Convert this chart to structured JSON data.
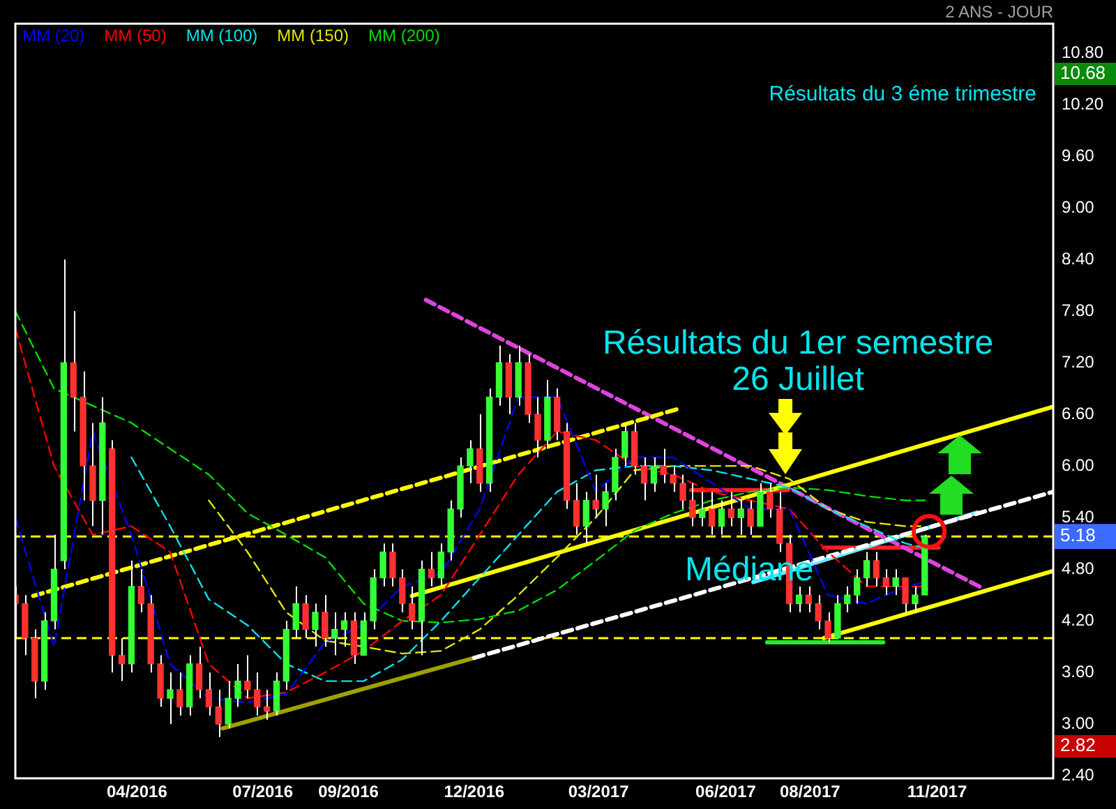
{
  "chart_data": {
    "type": "candlestick",
    "subtitle": "2 ANS - JOUR",
    "legend": "top left",
    "x": [
      "2016-01-04",
      "2016-01-11",
      "2016-01-18",
      "2016-01-25",
      "2016-02-01",
      "2016-02-08",
      "2016-02-15",
      "2016-02-22",
      "2016-02-29",
      "2016-03-07",
      "2016-03-14",
      "2016-03-21",
      "2016-03-28",
      "2016-04-04",
      "2016-04-11",
      "2016-04-18",
      "2016-04-25",
      "2016-05-02",
      "2016-05-09",
      "2016-05-16",
      "2016-05-23",
      "2016-05-30",
      "2016-06-06",
      "2016-06-13",
      "2016-06-20",
      "2016-06-27",
      "2016-07-04",
      "2016-07-11",
      "2016-07-18",
      "2016-07-25",
      "2016-08-01",
      "2016-08-08",
      "2016-08-15",
      "2016-08-22",
      "2016-08-29",
      "2016-09-05",
      "2016-09-12",
      "2016-09-19",
      "2016-09-26",
      "2016-10-03",
      "2016-10-10",
      "2016-10-17",
      "2016-10-24",
      "2016-10-31",
      "2016-11-07",
      "2016-11-14",
      "2016-11-21",
      "2016-11-28",
      "2016-12-05",
      "2016-12-12",
      "2016-12-19",
      "2016-12-26",
      "2017-01-02",
      "2017-01-09",
      "2017-01-16",
      "2017-01-23",
      "2017-01-30",
      "2017-02-06",
      "2017-02-13",
      "2017-02-20",
      "2017-02-27",
      "2017-03-06",
      "2017-03-13",
      "2017-03-20",
      "2017-03-27",
      "2017-04-03",
      "2017-04-10",
      "2017-04-17",
      "2017-04-24",
      "2017-05-01",
      "2017-05-08",
      "2017-05-15",
      "2017-05-22",
      "2017-05-29",
      "2017-06-05",
      "2017-06-12",
      "2017-06-19",
      "2017-06-26",
      "2017-07-03",
      "2017-07-10",
      "2017-07-17",
      "2017-07-24",
      "2017-07-31",
      "2017-08-07",
      "2017-08-14",
      "2017-08-21",
      "2017-08-28",
      "2017-09-04",
      "2017-09-11",
      "2017-09-18",
      "2017-09-25",
      "2017-10-02",
      "2017-10-09",
      "2017-10-16",
      "2017-10-23"
    ],
    "ohlc": [
      [
        4.5,
        4.6,
        4.0,
        4.4
      ],
      [
        4.4,
        4.5,
        3.8,
        4.0
      ],
      [
        4.0,
        4.1,
        3.3,
        3.5
      ],
      [
        3.5,
        4.3,
        3.4,
        4.2
      ],
      [
        4.2,
        5.2,
        4.1,
        4.8
      ],
      [
        4.9,
        8.4,
        4.8,
        7.2
      ],
      [
        7.2,
        7.8,
        6.4,
        6.8
      ],
      [
        6.8,
        7.1,
        5.6,
        6.0
      ],
      [
        6.0,
        6.5,
        5.3,
        5.6
      ],
      [
        5.6,
        6.8,
        5.2,
        6.5
      ],
      [
        6.2,
        6.3,
        3.6,
        3.8
      ],
      [
        3.8,
        4.0,
        3.5,
        3.7
      ],
      [
        3.7,
        4.9,
        3.6,
        4.6
      ],
      [
        4.6,
        4.8,
        4.3,
        4.4
      ],
      [
        4.4,
        4.5,
        3.6,
        3.7
      ],
      [
        3.7,
        3.8,
        3.2,
        3.3
      ],
      [
        3.3,
        3.6,
        3.0,
        3.4
      ],
      [
        3.4,
        3.6,
        3.1,
        3.2
      ],
      [
        3.2,
        3.8,
        3.1,
        3.7
      ],
      [
        3.7,
        3.9,
        3.3,
        3.4
      ],
      [
        3.4,
        3.6,
        3.1,
        3.2
      ],
      [
        3.2,
        3.4,
        2.85,
        3.0
      ],
      [
        3.0,
        3.5,
        2.95,
        3.3
      ],
      [
        3.3,
        3.7,
        3.2,
        3.5
      ],
      [
        3.5,
        3.8,
        3.3,
        3.4
      ],
      [
        3.4,
        3.6,
        3.1,
        3.2
      ],
      [
        3.2,
        3.4,
        3.05,
        3.15
      ],
      [
        3.15,
        3.6,
        3.1,
        3.5
      ],
      [
        3.5,
        4.2,
        3.4,
        4.1
      ],
      [
        4.1,
        4.6,
        4.0,
        4.4
      ],
      [
        4.4,
        4.5,
        4.0,
        4.1
      ],
      [
        4.1,
        4.4,
        3.9,
        4.3
      ],
      [
        4.3,
        4.5,
        3.9,
        4.0
      ],
      [
        4.0,
        4.3,
        3.8,
        4.1
      ],
      [
        4.1,
        4.3,
        3.9,
        4.2
      ],
      [
        4.2,
        4.3,
        3.7,
        3.8
      ],
      [
        3.8,
        4.3,
        3.8,
        4.2
      ],
      [
        4.2,
        4.8,
        4.1,
        4.7
      ],
      [
        4.7,
        5.1,
        4.6,
        5.0
      ],
      [
        5.0,
        5.1,
        4.6,
        4.7
      ],
      [
        4.7,
        4.8,
        4.3,
        4.4
      ],
      [
        4.4,
        4.6,
        4.1,
        4.2
      ],
      [
        4.2,
        4.9,
        3.8,
        4.8
      ],
      [
        4.8,
        5.0,
        4.6,
        4.7
      ],
      [
        4.7,
        5.1,
        4.6,
        5.0
      ],
      [
        5.0,
        5.6,
        4.9,
        5.5
      ],
      [
        5.5,
        6.1,
        5.4,
        6.0
      ],
      [
        6.0,
        6.3,
        5.8,
        6.2
      ],
      [
        6.2,
        6.6,
        5.7,
        5.8
      ],
      [
        5.8,
        6.9,
        5.7,
        6.8
      ],
      [
        6.8,
        7.4,
        6.7,
        7.2
      ],
      [
        7.2,
        7.3,
        6.6,
        6.8
      ],
      [
        6.8,
        7.4,
        6.7,
        7.2
      ],
      [
        7.2,
        7.3,
        6.5,
        6.6
      ],
      [
        6.6,
        6.8,
        6.1,
        6.3
      ],
      [
        6.3,
        7.0,
        6.2,
        6.8
      ],
      [
        6.8,
        6.9,
        6.3,
        6.4
      ],
      [
        6.4,
        6.5,
        5.5,
        5.6
      ],
      [
        5.6,
        5.8,
        5.2,
        5.3
      ],
      [
        5.3,
        5.7,
        5.1,
        5.6
      ],
      [
        5.6,
        5.9,
        5.4,
        5.5
      ],
      [
        5.5,
        5.8,
        5.3,
        5.7
      ],
      [
        5.7,
        6.2,
        5.6,
        6.1
      ],
      [
        6.1,
        6.5,
        6.0,
        6.4
      ],
      [
        6.4,
        6.5,
        5.9,
        6.0
      ],
      [
        6.0,
        6.1,
        5.6,
        5.8
      ],
      [
        5.8,
        6.1,
        5.7,
        6.0
      ],
      [
        6.0,
        6.2,
        5.8,
        5.9
      ],
      [
        5.9,
        6.0,
        5.7,
        5.8
      ],
      [
        5.8,
        5.9,
        5.5,
        5.6
      ],
      [
        5.6,
        5.8,
        5.3,
        5.4
      ],
      [
        5.4,
        5.7,
        5.3,
        5.5
      ],
      [
        5.5,
        5.7,
        5.2,
        5.3
      ],
      [
        5.3,
        5.6,
        5.2,
        5.5
      ],
      [
        5.5,
        5.7,
        5.3,
        5.4
      ],
      [
        5.4,
        5.6,
        5.2,
        5.5
      ],
      [
        5.5,
        5.6,
        5.2,
        5.3
      ],
      [
        5.3,
        5.8,
        5.3,
        5.7
      ],
      [
        5.7,
        5.8,
        5.4,
        5.5
      ],
      [
        5.5,
        5.7,
        5.0,
        5.1
      ],
      [
        5.1,
        5.2,
        4.3,
        4.4
      ],
      [
        4.4,
        4.6,
        4.3,
        4.5
      ],
      [
        4.5,
        4.6,
        4.3,
        4.4
      ],
      [
        4.4,
        4.5,
        4.1,
        4.2
      ],
      [
        4.2,
        4.3,
        3.95,
        4.0
      ],
      [
        4.0,
        4.5,
        4.0,
        4.4
      ],
      [
        4.4,
        4.6,
        4.3,
        4.5
      ],
      [
        4.5,
        4.8,
        4.4,
        4.7
      ],
      [
        4.7,
        5.0,
        4.6,
        4.9
      ],
      [
        4.9,
        5.0,
        4.6,
        4.7
      ],
      [
        4.7,
        4.8,
        4.5,
        4.6
      ],
      [
        4.6,
        4.8,
        4.5,
        4.7
      ],
      [
        4.7,
        4.7,
        4.3,
        4.4
      ],
      [
        4.4,
        4.6,
        4.3,
        4.5
      ],
      [
        4.5,
        5.2,
        4.5,
        5.18
      ]
    ],
    "series": [
      {
        "type": "line",
        "name": "MM (20)",
        "color": "#0000ff",
        "line_style": "dashed",
        "x": [
          "2016-01-04",
          "2016-02-01",
          "2016-02-29",
          "2016-03-28",
          "2016-04-25",
          "2016-05-23",
          "2016-06-20",
          "2016-07-18",
          "2016-08-15",
          "2016-09-12",
          "2016-10-10",
          "2016-11-07",
          "2016-12-05",
          "2017-01-02",
          "2017-01-30",
          "2017-02-27",
          "2017-03-27",
          "2017-04-24",
          "2017-05-22",
          "2017-06-19",
          "2017-07-17",
          "2017-08-14",
          "2017-09-11",
          "2017-10-09",
          "2017-10-23"
        ],
        "values": [
          5.4,
          3.9,
          6.4,
          5.2,
          3.7,
          3.3,
          3.25,
          3.35,
          3.95,
          4.15,
          4.6,
          4.75,
          5.5,
          6.8,
          6.8,
          5.7,
          6.1,
          6.1,
          5.8,
          5.5,
          5.5,
          4.5,
          4.4,
          4.6,
          4.65
        ]
      },
      {
        "type": "line",
        "name": "MM (50)",
        "color": "#ff0000",
        "line_style": "dashed",
        "x": [
          "2016-01-04",
          "2016-02-01",
          "2016-02-29",
          "2016-03-28",
          "2016-04-25",
          "2016-05-23",
          "2016-06-20",
          "2016-07-18",
          "2016-08-15",
          "2016-09-12",
          "2016-10-10",
          "2016-11-07",
          "2016-12-05",
          "2017-01-02",
          "2017-01-30",
          "2017-02-27",
          "2017-03-27",
          "2017-04-24",
          "2017-05-22",
          "2017-06-19",
          "2017-07-17",
          "2017-08-14",
          "2017-09-11",
          "2017-10-09",
          "2017-10-23"
        ],
        "values": [
          7.6,
          6.0,
          5.2,
          5.3,
          5.0,
          3.7,
          3.3,
          3.37,
          3.6,
          3.85,
          4.2,
          4.5,
          5.2,
          5.9,
          6.4,
          6.3,
          6.0,
          5.9,
          5.7,
          5.6,
          5.5,
          5.0,
          4.6,
          4.6,
          4.6
        ]
      },
      {
        "type": "line",
        "name": "MM (100)",
        "color": "#00e5ee",
        "line_style": "dashed",
        "x": [
          "2016-03-28",
          "2016-04-25",
          "2016-05-23",
          "2016-06-20",
          "2016-07-18",
          "2016-08-15",
          "2016-09-12",
          "2016-10-10",
          "2016-11-07",
          "2016-12-05",
          "2017-01-02",
          "2017-01-30",
          "2017-02-27",
          "2017-03-27",
          "2017-04-24",
          "2017-05-22",
          "2017-06-19",
          "2017-07-17",
          "2017-08-14",
          "2017-09-11",
          "2017-10-09",
          "2017-10-23"
        ],
        "values": [
          6.1,
          5.3,
          4.45,
          4.15,
          3.7,
          3.5,
          3.5,
          3.75,
          4.2,
          4.7,
          5.2,
          5.7,
          5.95,
          6.0,
          6.0,
          5.95,
          5.85,
          5.75,
          5.5,
          5.3,
          5.1,
          5.05
        ]
      },
      {
        "type": "line",
        "name": "MM (150)",
        "color": "#e5e500",
        "line_style": "dashed",
        "x": [
          "2016-05-23",
          "2016-06-20",
          "2016-07-18",
          "2016-08-15",
          "2016-09-12",
          "2016-10-10",
          "2016-11-07",
          "2016-12-05",
          "2017-01-02",
          "2017-01-30",
          "2017-02-27",
          "2017-03-27",
          "2017-04-24",
          "2017-05-22",
          "2017-06-19",
          "2017-07-17",
          "2017-08-14",
          "2017-09-11",
          "2017-10-09",
          "2017-10-23"
        ],
        "values": [
          5.6,
          5.0,
          4.3,
          3.97,
          3.9,
          3.82,
          3.85,
          4.1,
          4.5,
          4.94,
          5.4,
          5.95,
          6.0,
          6.0,
          6.0,
          5.85,
          5.5,
          5.35,
          5.3,
          5.3
        ]
      },
      {
        "type": "line",
        "name": "MM (200)",
        "color": "#00dd00",
        "line_style": "dashed",
        "x": [
          "2016-01-04",
          "2016-02-01",
          "2016-02-29",
          "2016-03-28",
          "2016-04-25",
          "2016-05-23",
          "2016-06-20",
          "2016-07-18",
          "2016-08-15",
          "2016-09-12",
          "2016-10-10",
          "2016-11-07",
          "2016-12-05",
          "2017-01-02",
          "2017-01-30",
          "2017-02-27",
          "2017-03-27",
          "2017-04-24",
          "2017-05-22",
          "2017-06-19",
          "2017-07-17",
          "2017-08-14",
          "2017-09-11",
          "2017-10-09",
          "2017-10-23"
        ],
        "values": [
          7.8,
          6.9,
          6.7,
          6.5,
          6.2,
          5.9,
          5.45,
          5.2,
          4.94,
          4.4,
          4.2,
          4.18,
          4.22,
          4.32,
          4.56,
          4.9,
          5.25,
          5.45,
          5.6,
          5.7,
          5.75,
          5.72,
          5.65,
          5.6,
          5.6
        ]
      },
      {
        "type": "line",
        "color": "#ffff00",
        "line_style": "solid",
        "x": [
          "2016-10-17",
          "2018-01-24"
        ],
        "values": [
          4.49,
          6.69
        ]
      },
      {
        "type": "line",
        "color": "#ffff00",
        "line_style": "solid",
        "x": [
          "2017-08-11",
          "2018-01-24"
        ],
        "values": [
          4.0,
          4.78
        ]
      },
      {
        "type": "line",
        "color": "#ffff00",
        "line_style": "dashed",
        "x": [
          "2016-01-17",
          "2017-04-29"
        ],
        "values": [
          4.49,
          6.67
        ]
      },
      {
        "type": "line",
        "color": "#ffffff",
        "line_style": "dashed",
        "x": [
          "2016-12-01",
          "2018-01-24"
        ],
        "values": [
          3.77,
          5.7
        ]
      },
      {
        "type": "line",
        "color": "#66e8ff",
        "line_style": "solid",
        "x": [
          "2017-06-21",
          "2017-11-30"
        ],
        "values": [
          4.65,
          5.46
        ]
      },
      {
        "type": "line",
        "color": "#dd44dd",
        "line_style": "dashed",
        "x": [
          "2016-10-27",
          "2017-12-05"
        ],
        "values": [
          7.93,
          4.57
        ]
      },
      {
        "type": "line",
        "color": "#a0a000",
        "line_style": "solid",
        "x": [
          "2016-06-02",
          "2016-12-01"
        ],
        "values": [
          2.95,
          3.77
        ]
      },
      {
        "type": "line",
        "color": "#ff2020",
        "line_style": "solid",
        "x": [
          "2017-05-07",
          "2017-07-16"
        ],
        "values": [
          5.72,
          5.72
        ]
      },
      {
        "type": "line",
        "color": "#ff2020",
        "line_style": "solid",
        "x": [
          "2017-08-11",
          "2017-11-02"
        ],
        "values": [
          5.05,
          5.05
        ]
      },
      {
        "type": "line",
        "color": "#22ee22",
        "line_style": "solid",
        "x": [
          "2017-07-01",
          "2017-09-23"
        ],
        "values": [
          3.95,
          3.95
        ]
      }
    ],
    "ref_lines": [
      {
        "axis": "y",
        "value": 5.18,
        "label": "5.18",
        "color": "#ffff00",
        "line_style": "dashed"
      },
      {
        "axis": "y",
        "value": 4.0,
        "color": "#ffff00",
        "line_style": "dashed"
      }
    ],
    "annotations": [
      "Résultats du 3 éme trimestre",
      "Résultats du 1er semestre\n26 Juillet",
      {
        "text": "Médiane",
        "x": "2017-06-18",
        "y": 4.78
      },
      "10.68",
      "2.82"
    ],
    "xlim": [
      "2016-01-04",
      "2018-01-24"
    ],
    "xticks": [
      {
        "value": "2016-04-01",
        "label": "04/2016"
      },
      {
        "value": "2016-07-01",
        "label": "07/2016"
      },
      {
        "value": "2016-09-01",
        "label": "09/2016"
      },
      {
        "value": "2016-12-01",
        "label": "12/2016"
      },
      {
        "value": "2017-03-01",
        "label": "03/2017"
      },
      {
        "value": "2017-06-01",
        "label": "06/2017"
      },
      {
        "value": "2017-08-01",
        "label": "08/2017"
      },
      {
        "value": "2017-11-01",
        "label": "11/2017"
      }
    ],
    "ylim": [
      2.37,
      11.14
    ],
    "yticks": [
      {
        "value": 2.4,
        "label": "2.40"
      },
      {
        "value": 3.0,
        "label": "3.00"
      },
      {
        "value": 3.6,
        "label": "3.60"
      },
      {
        "value": 4.2,
        "label": "4.20"
      },
      {
        "value": 4.8,
        "label": "4.80"
      },
      {
        "value": 5.4,
        "label": "5.40"
      },
      {
        "value": 6.0,
        "label": "6.00"
      },
      {
        "value": 6.6,
        "label": "6.60"
      },
      {
        "value": 7.2,
        "label": "7.20"
      },
      {
        "value": 7.8,
        "label": "7.80"
      },
      {
        "value": 8.4,
        "label": "8.40"
      },
      {
        "value": 9.0,
        "label": "9.00"
      },
      {
        "value": 9.6,
        "label": "9.60"
      },
      {
        "value": 10.2,
        "label": "10.20"
      },
      {
        "value": 10.8,
        "label": "10.80"
      }
    ]
  }
}
